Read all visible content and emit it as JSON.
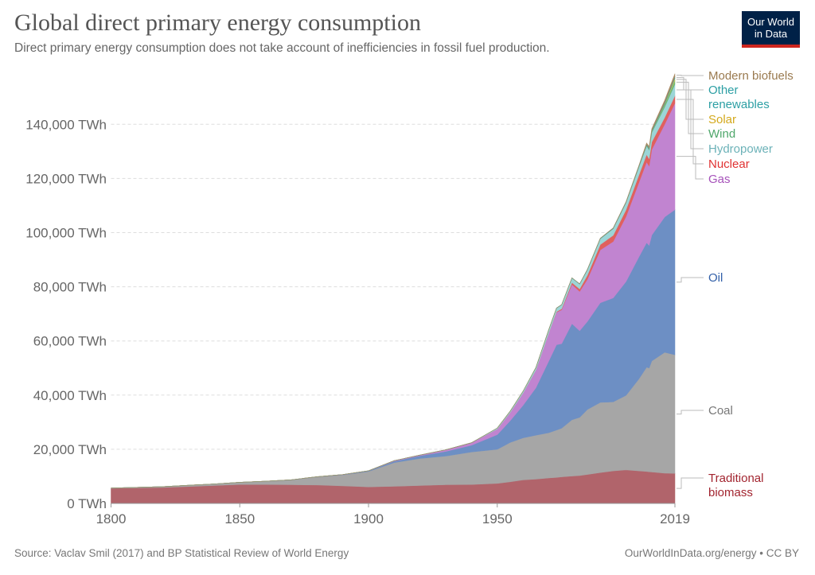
{
  "header": {
    "title": "Global direct primary energy consumption",
    "subtitle": "Direct primary energy consumption does not take account of inefficiencies in fossil fuel production.",
    "logo_line1": "Our World",
    "logo_line2": "in Data"
  },
  "footer": {
    "source": "Source: Vaclav Smil (2017) and BP Statistical Review of World Energy",
    "credit": "OurWorldInData.org/energy • CC BY"
  },
  "chart_data": {
    "type": "area",
    "stacked": true,
    "title": "Global direct primary energy consumption",
    "xlabel": "",
    "ylabel": "",
    "unit": "TWh",
    "xlim": [
      1800,
      2019
    ],
    "ylim": [
      0,
      160000
    ],
    "grid": true,
    "legend_placement": "right (inline labels)",
    "y_ticks": [
      {
        "value": 0,
        "label": "0 TWh"
      },
      {
        "value": 20000,
        "label": "20,000 TWh"
      },
      {
        "value": 40000,
        "label": "40,000 TWh"
      },
      {
        "value": 60000,
        "label": "60,000 TWh"
      },
      {
        "value": 80000,
        "label": "80,000 TWh"
      },
      {
        "value": 100000,
        "label": "100,000 TWh"
      },
      {
        "value": 120000,
        "label": "120,000 TWh"
      },
      {
        "value": 140000,
        "label": "140,000 TWh"
      }
    ],
    "x_ticks": [
      {
        "value": 1800,
        "label": "1800"
      },
      {
        "value": 1850,
        "label": "1850"
      },
      {
        "value": 1900,
        "label": "1900"
      },
      {
        "value": 1950,
        "label": "1950"
      },
      {
        "value": 2019,
        "label": "2019"
      }
    ],
    "x": [
      1800,
      1820,
      1840,
      1850,
      1860,
      1870,
      1880,
      1890,
      1900,
      1910,
      1920,
      1930,
      1940,
      1950,
      1955,
      1960,
      1965,
      1970,
      1973,
      1975,
      1979,
      1982,
      1985,
      1990,
      1995,
      2000,
      2005,
      2008,
      2009,
      2010,
      2015,
      2019
    ],
    "series": [
      {
        "name": "Traditional biomass",
        "label_lines": [
          "Traditional",
          "biomass"
        ],
        "color": "#b1646b",
        "label_color": "#a2242f",
        "values": [
          5560,
          5900,
          6600,
          7000,
          7000,
          6900,
          6800,
          6500,
          6100,
          6300,
          6600,
          6900,
          7000,
          7400,
          8000,
          8700,
          9000,
          9400,
          9600,
          9800,
          10100,
          10300,
          10700,
          11400,
          12000,
          12400,
          12000,
          11800,
          11700,
          11600,
          11200,
          11100
        ]
      },
      {
        "name": "Coal",
        "label_lines": [
          "Coal"
        ],
        "color": "#a6a6a6",
        "label_color": "#777777",
        "values": [
          100,
          300,
          600,
          800,
          1200,
          1800,
          3000,
          4000,
          5700,
          8800,
          10000,
          10600,
          12000,
          12600,
          14500,
          15500,
          16200,
          16700,
          17500,
          18000,
          20800,
          21500,
          24000,
          25900,
          25500,
          27500,
          34000,
          38500,
          38300,
          41000,
          44600,
          43800
        ]
      },
      {
        "name": "Oil",
        "label_lines": [
          "Oil"
        ],
        "color": "#6d8fc4",
        "label_color": "#3360a9",
        "values": [
          0,
          0,
          0,
          0,
          0,
          10,
          50,
          100,
          200,
          500,
          1000,
          1700,
          2500,
          5400,
          8000,
          12000,
          17500,
          26500,
          31500,
          31200,
          35500,
          32000,
          32500,
          36800,
          38400,
          42000,
          45000,
          46000,
          45300,
          46500,
          50000,
          53600
        ]
      },
      {
        "name": "Gas",
        "label_lines": [
          "Gas"
        ],
        "color": "#c184d0",
        "label_color": "#a652ba",
        "values": [
          0,
          0,
          0,
          0,
          0,
          0,
          10,
          50,
          60,
          200,
          250,
          600,
          900,
          2100,
          3000,
          4500,
          6500,
          10300,
          12000,
          12500,
          14500,
          14500,
          15600,
          19500,
          20800,
          24000,
          27500,
          29800,
          29300,
          31600,
          34200,
          39300
        ]
      },
      {
        "name": "Nuclear",
        "label_lines": [
          "Nuclear"
        ],
        "color": "#e0605e",
        "label_color": "#e03131",
        "values": [
          0,
          0,
          0,
          0,
          0,
          0,
          0,
          0,
          0,
          0,
          0,
          0,
          0,
          0,
          0,
          0,
          30,
          80,
          200,
          380,
          650,
          900,
          1500,
          2000,
          2300,
          2500,
          2770,
          2730,
          2700,
          2770,
          2500,
          2800
        ]
      },
      {
        "name": "Hydropower",
        "label_lines": [
          "Hydropower"
        ],
        "color": "#9cd5d7",
        "label_color": "#6cb2b8",
        "values": [
          0,
          0,
          0,
          0,
          0,
          0,
          0,
          0,
          0,
          0,
          0,
          0,
          0,
          340,
          500,
          690,
          920,
          1180,
          1300,
          1470,
          1700,
          1800,
          1990,
          2160,
          2480,
          2650,
          2930,
          3200,
          3250,
          3450,
          3880,
          4220
        ]
      },
      {
        "name": "Wind",
        "label_lines": [
          "Wind"
        ],
        "color": "#6db878",
        "label_color": "#4fa76b",
        "values": [
          0,
          0,
          0,
          0,
          0,
          0,
          0,
          0,
          0,
          0,
          0,
          0,
          0,
          0,
          0,
          0,
          0,
          0,
          0,
          0,
          0,
          0,
          0,
          4,
          8,
          31,
          104,
          220,
          275,
          346,
          831,
          1430
        ]
      },
      {
        "name": "Solar",
        "label_lines": [
          "Solar"
        ],
        "color": "#e4c44a",
        "label_color": "#d4a91c",
        "values": [
          0,
          0,
          0,
          0,
          0,
          0,
          0,
          0,
          0,
          0,
          0,
          0,
          0,
          0,
          0,
          0,
          0,
          0,
          0,
          0,
          0,
          0,
          0,
          0,
          0,
          0,
          4,
          12,
          21,
          34,
          256,
          724
        ]
      },
      {
        "name": "Other renewables",
        "label_lines": [
          "Other",
          "renewables"
        ],
        "color": "#3a9fa8",
        "label_color": "#2c9fa4",
        "values": [
          0,
          0,
          0,
          0,
          0,
          0,
          0,
          0,
          0,
          0,
          0,
          0,
          0,
          0,
          0,
          0,
          30,
          40,
          50,
          60,
          80,
          90,
          100,
          120,
          160,
          200,
          260,
          320,
          340,
          370,
          560,
          640
        ]
      },
      {
        "name": "Modern biofuels",
        "label_lines": [
          "Modern biofuels"
        ],
        "color": "#a98a63",
        "label_color": "#9a7a4f",
        "values": [
          0,
          0,
          0,
          0,
          0,
          0,
          0,
          0,
          0,
          0,
          0,
          0,
          0,
          0,
          0,
          0,
          0,
          0,
          0,
          0,
          0,
          0,
          0,
          60,
          80,
          110,
          220,
          520,
          600,
          680,
          830,
          1100
        ]
      }
    ]
  }
}
